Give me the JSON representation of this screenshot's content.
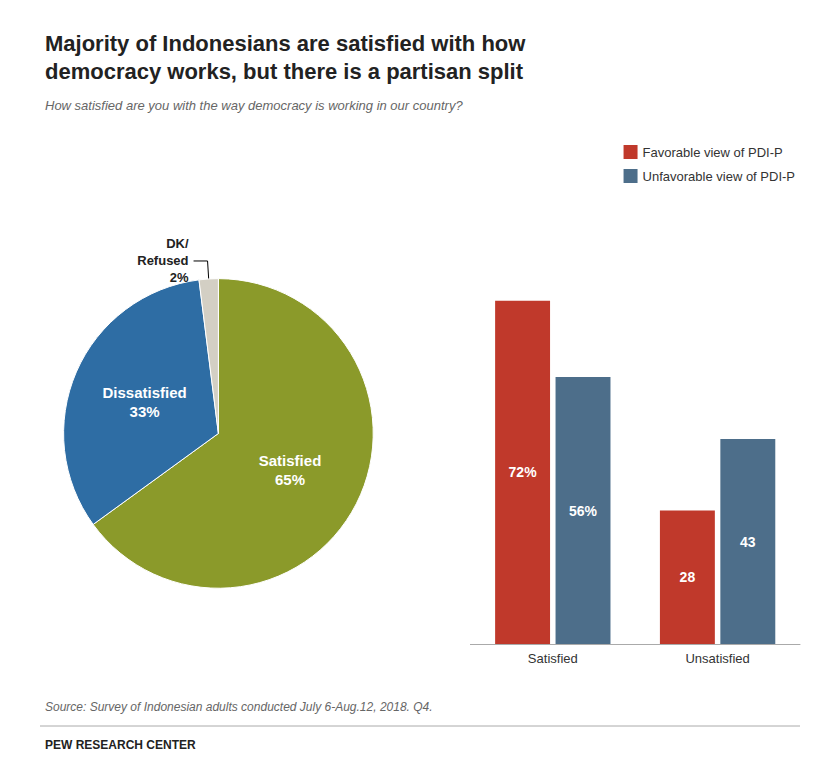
{
  "chart_data": [
    {
      "type": "pie",
      "title": "Majority of Indonesians are satisfied with how\ndemocracy works, but there is a partisan split",
      "subtitle": "How satisfied are you with the way democracy is working in our country?",
      "categories": [
        "Satisfied",
        "Dissatisfied",
        "DK/\nRefused"
      ],
      "values": [
        65,
        33,
        2
      ],
      "value_labels": [
        "65%",
        "33%",
        "2%"
      ],
      "colors": [
        "#8b9a2a",
        "#2e6da4",
        "#d3cfc4"
      ],
      "data_labels": true,
      "annotations": [
        "Source: Survey of Indonesian adults conducted July 6-Aug.12, 2018. Q4.",
        "PEW RESEARCH CENTER"
      ]
    },
    {
      "type": "bar",
      "categories": [
        "Satisfied",
        "Unsatisfied"
      ],
      "series": [
        {
          "name": "Favorable view of PDI-P",
          "color": "#c0392b",
          "values": [
            72,
            28
          ],
          "value_labels": [
            "72%",
            "28"
          ]
        },
        {
          "name": "Unfavorable view of PDI-P",
          "color": "#4d6e8a",
          "values": [
            56,
            43
          ],
          "value_labels": [
            "56%",
            "43"
          ]
        }
      ],
      "ylim": [
        0,
        90
      ],
      "tick_labels": "x",
      "grid": false,
      "legend": "upper right",
      "data_labels": true
    }
  ]
}
